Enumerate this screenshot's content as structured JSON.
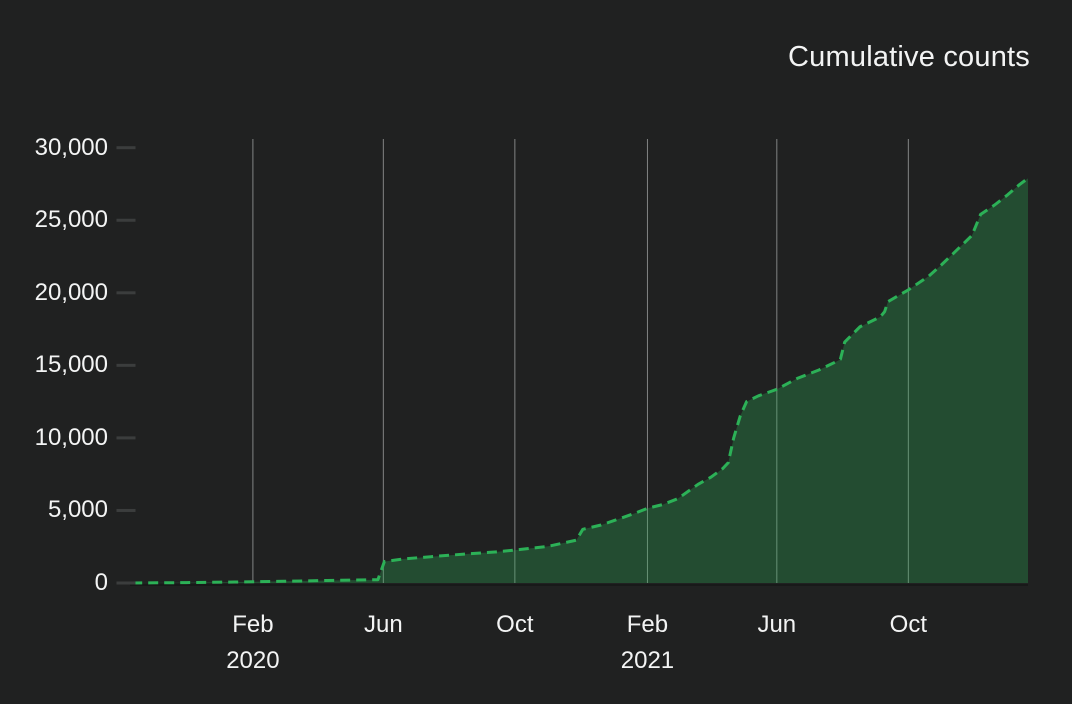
{
  "colors": {
    "background": "#202121",
    "text": "#f3f4f4",
    "gridline": "#828484",
    "axis_tick": "#3b3d3d",
    "zero_line": "#181919",
    "line": "#2cb157",
    "area_fill_rgba": "rgba(44,177,87,0.30)"
  },
  "chart_data": {
    "type": "area",
    "title": "Cumulative counts",
    "xlabel": "",
    "ylabel": "",
    "ylim": [
      0,
      30000
    ],
    "x_domain": [
      "2019-10-10",
      "2022-01-20"
    ],
    "grid": "vertical-only",
    "legend": "none",
    "line_style": "dashed",
    "y_ticks": [
      {
        "value": 0,
        "label": "0"
      },
      {
        "value": 5000,
        "label": "5,000"
      },
      {
        "value": 10000,
        "label": "10,000"
      },
      {
        "value": 15000,
        "label": "15,000"
      },
      {
        "value": 20000,
        "label": "20,000"
      },
      {
        "value": 25000,
        "label": "25,000"
      },
      {
        "value": 30000,
        "label": "30,000"
      }
    ],
    "x_ticks": [
      {
        "date": "2020-02-01",
        "label": "Feb",
        "year": "2020"
      },
      {
        "date": "2020-06-01",
        "label": "Jun",
        "year": ""
      },
      {
        "date": "2020-10-01",
        "label": "Oct",
        "year": ""
      },
      {
        "date": "2021-02-01",
        "label": "Feb",
        "year": "2021"
      },
      {
        "date": "2021-06-01",
        "label": "Jun",
        "year": ""
      },
      {
        "date": "2021-10-01",
        "label": "Oct",
        "year": ""
      }
    ],
    "series": [
      {
        "name": "Cumulative counts",
        "points": [
          [
            "2019-10-12",
            0
          ],
          [
            "2019-12-01",
            30
          ],
          [
            "2020-01-15",
            70
          ],
          [
            "2020-03-01",
            120
          ],
          [
            "2020-04-10",
            170
          ],
          [
            "2020-05-27",
            230
          ],
          [
            "2020-06-02",
            1480
          ],
          [
            "2020-06-20",
            1660
          ],
          [
            "2020-07-15",
            1810
          ],
          [
            "2020-08-15",
            1990
          ],
          [
            "2020-09-15",
            2150
          ],
          [
            "2020-10-01",
            2270
          ],
          [
            "2020-11-01",
            2530
          ],
          [
            "2020-11-27",
            2950
          ],
          [
            "2020-12-03",
            3700
          ],
          [
            "2020-12-20",
            4000
          ],
          [
            "2021-01-01",
            4300
          ],
          [
            "2021-01-20",
            4800
          ],
          [
            "2021-02-01",
            5150
          ],
          [
            "2021-02-15",
            5400
          ],
          [
            "2021-03-01",
            5800
          ],
          [
            "2021-03-20",
            6800
          ],
          [
            "2021-04-01",
            7300
          ],
          [
            "2021-04-12",
            7900
          ],
          [
            "2021-04-17",
            8300
          ],
          [
            "2021-04-22",
            10000
          ],
          [
            "2021-04-28",
            11500
          ],
          [
            "2021-05-04",
            12500
          ],
          [
            "2021-05-15",
            12900
          ],
          [
            "2021-06-01",
            13350
          ],
          [
            "2021-06-20",
            14100
          ],
          [
            "2021-07-10",
            14680
          ],
          [
            "2021-07-26",
            15250
          ],
          [
            "2021-07-30",
            15420
          ],
          [
            "2021-08-03",
            16600
          ],
          [
            "2021-08-17",
            17650
          ],
          [
            "2021-09-05",
            18340
          ],
          [
            "2021-09-09",
            18700
          ],
          [
            "2021-09-12",
            19390
          ],
          [
            "2021-10-01",
            20200
          ],
          [
            "2021-10-20",
            21150
          ],
          [
            "2021-11-01",
            21950
          ],
          [
            "2021-11-20",
            23300
          ],
          [
            "2021-11-29",
            23950
          ],
          [
            "2021-12-07",
            25400
          ],
          [
            "2021-12-20",
            26050
          ],
          [
            "2022-01-01",
            26750
          ],
          [
            "2022-01-12",
            27450
          ],
          [
            "2022-01-20",
            27890
          ]
        ]
      }
    ]
  }
}
